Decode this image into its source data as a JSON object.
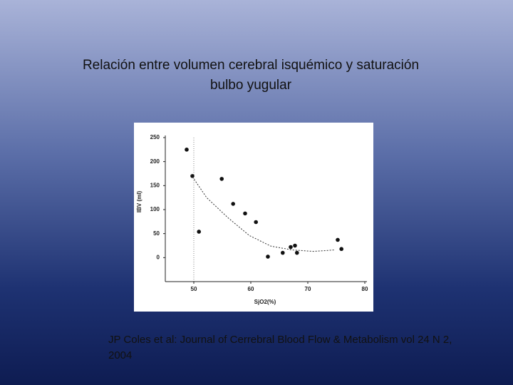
{
  "chart_data": {
    "type": "scatter",
    "title": "Relación entre  volumen cerebral isquémico y saturación bulbo yugular",
    "source": "JP Coles et al: Journal of Cerrebral Blood Flow & Metabolism vol 24 N 2,  2004",
    "x_label": "SjO2(%)",
    "y_label": "IBV (ml)",
    "xlim": [
      45,
      80
    ],
    "ylim": [
      -50,
      250
    ],
    "xticks": [
      50,
      60,
      70,
      80
    ],
    "yticks": [
      0,
      50,
      100,
      150,
      200,
      250
    ],
    "series": [
      {
        "type": "scatter",
        "color": "#111111",
        "x": [
          48.75,
          49.75,
          50.9,
          54.9,
          56.9,
          59,
          60.9,
          63,
          65.6,
          67,
          67.75,
          68.1,
          75.25,
          75.9
        ],
        "values": [
          225,
          170,
          54,
          164,
          112,
          92,
          74,
          2,
          10,
          22,
          25,
          10,
          37,
          18
        ]
      },
      {
        "type": "line",
        "color": "#333333",
        "x": [
          49.5,
          52.25,
          56,
          59.75,
          63.5,
          67.25,
          71,
          74.75
        ],
        "values": [
          173,
          125,
          83,
          46,
          24,
          16,
          13,
          16
        ]
      }
    ]
  }
}
